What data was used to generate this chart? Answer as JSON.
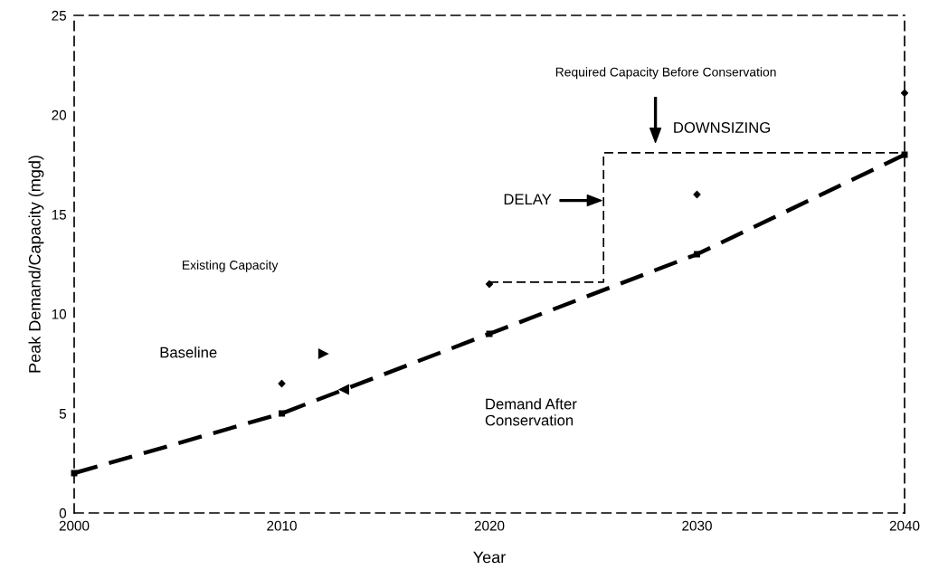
{
  "chart_data": {
    "type": "line",
    "xlabel": "Year",
    "ylabel": "Peak Demand/Capacity (mgd)",
    "xlim": [
      2000,
      2040
    ],
    "ylim": [
      0,
      25
    ],
    "xticks": [
      2000,
      2010,
      2020,
      2030,
      2040
    ],
    "yticks": [
      0,
      5,
      10,
      15,
      20,
      25
    ],
    "grid": false,
    "series": [
      {
        "color": "#000000",
        "line_style": "dashed",
        "marker": "square",
        "x": [
          2000,
          2010,
          2020,
          2030,
          2040
        ],
        "values": [
          2,
          5,
          9,
          13,
          18
        ]
      },
      {
        "color": "#000000",
        "line_style": "dashed",
        "marker": "none",
        "x": [
          2020,
          2025.5,
          2025.5,
          2040
        ],
        "values": [
          11.6,
          11.6,
          18.1,
          18.1
        ]
      },
      {
        "type": "scatter",
        "color": "#000000",
        "marker": "diamond",
        "x": [
          2010,
          2020,
          2030,
          2040
        ],
        "values": [
          6.5,
          11.5,
          16,
          21.1
        ]
      }
    ],
    "annotations": [
      "Baseline",
      "Demand After\nConservation",
      "DELAY",
      "Required Capacity Before Conservation",
      "DOWNSIZING",
      "Existing Capacity"
    ]
  }
}
